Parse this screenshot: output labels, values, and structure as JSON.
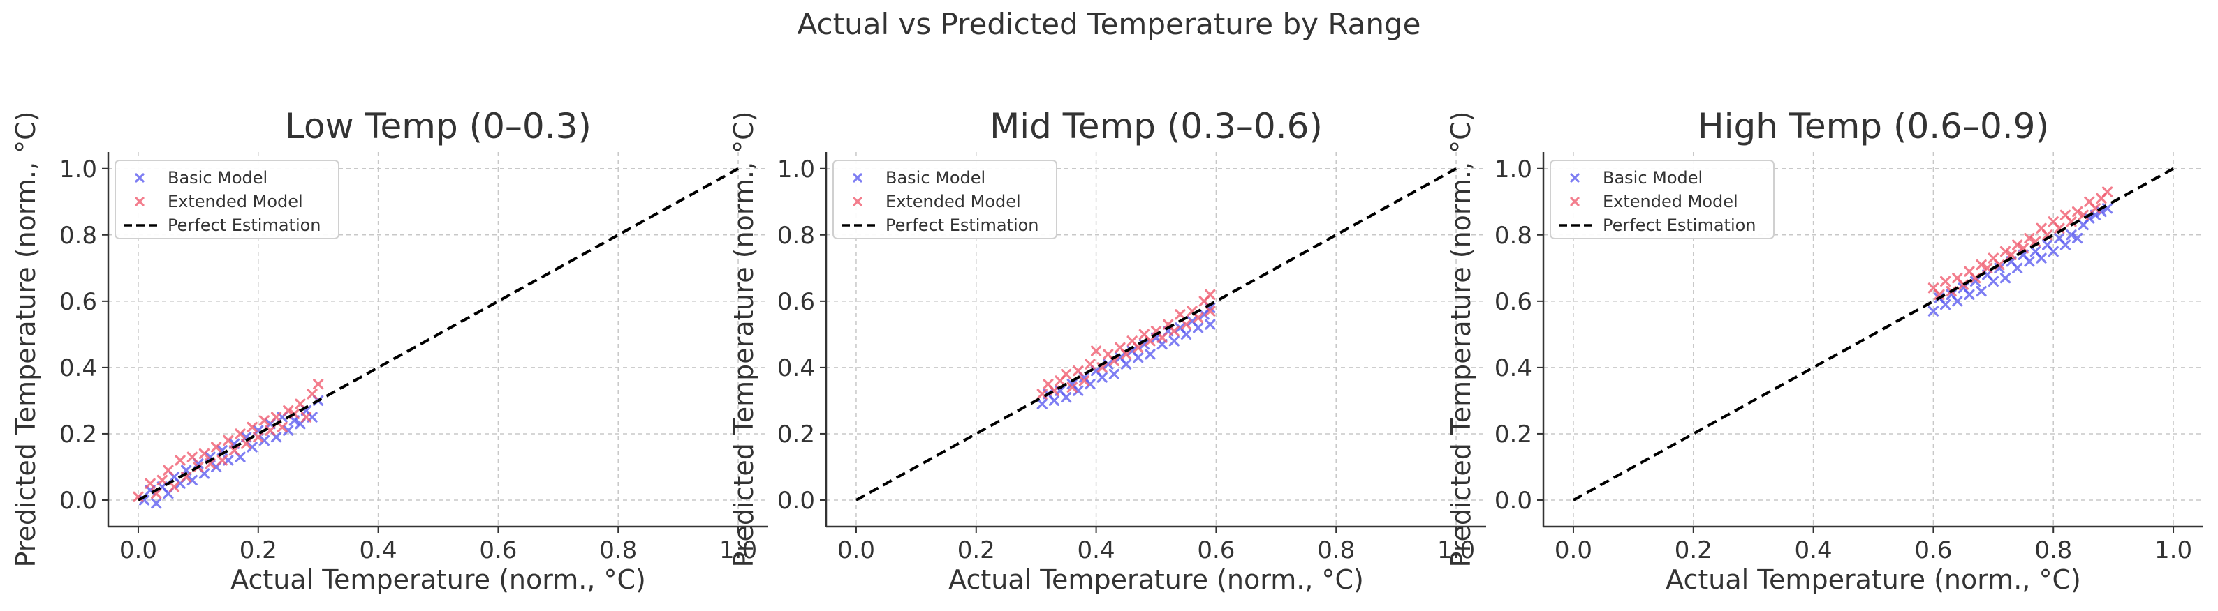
{
  "figure_title": "Actual vs Predicted Temperature by Range",
  "colors": {
    "basic": "#5a5af0",
    "extended": "#f05a6e",
    "perfect": "#000000",
    "grid": "#c8c8c8",
    "axis": "#333333"
  },
  "chart_data": [
    {
      "type": "scatter",
      "title": "Low Temp (0–0.3)",
      "xlabel": "Actual Temperature (norm., °C)",
      "ylabel": "Predicted Temperature (norm., °C)",
      "xlim": [
        -0.05,
        1.05
      ],
      "ylim": [
        -0.08,
        1.05
      ],
      "xticks": [
        "0.0",
        "0.2",
        "0.4",
        "0.6",
        "0.8",
        "1.0"
      ],
      "yticks": [
        "0.0",
        "0.2",
        "0.4",
        "0.6",
        "0.8",
        "1.0"
      ],
      "grid": true,
      "legend": {
        "position": "upper left",
        "entries": [
          "Basic Model",
          "Extended Model",
          "Perfect Estimation"
        ]
      },
      "series": [
        {
          "name": "Basic Model",
          "marker": "x",
          "points": [
            [
              0.01,
              0.0
            ],
            [
              0.02,
              0.03
            ],
            [
              0.03,
              -0.01
            ],
            [
              0.04,
              0.04
            ],
            [
              0.05,
              0.02
            ],
            [
              0.06,
              0.07
            ],
            [
              0.07,
              0.05
            ],
            [
              0.08,
              0.09
            ],
            [
              0.09,
              0.06
            ],
            [
              0.1,
              0.11
            ],
            [
              0.11,
              0.08
            ],
            [
              0.12,
              0.13
            ],
            [
              0.13,
              0.1
            ],
            [
              0.14,
              0.15
            ],
            [
              0.15,
              0.12
            ],
            [
              0.16,
              0.17
            ],
            [
              0.17,
              0.13
            ],
            [
              0.18,
              0.19
            ],
            [
              0.19,
              0.16
            ],
            [
              0.2,
              0.21
            ],
            [
              0.21,
              0.18
            ],
            [
              0.22,
              0.23
            ],
            [
              0.23,
              0.19
            ],
            [
              0.24,
              0.25
            ],
            [
              0.25,
              0.21
            ],
            [
              0.26,
              0.24
            ],
            [
              0.27,
              0.23
            ],
            [
              0.28,
              0.27
            ],
            [
              0.29,
              0.25
            ],
            [
              0.3,
              0.3
            ]
          ]
        },
        {
          "name": "Extended Model",
          "marker": "x",
          "points": [
            [
              0.0,
              0.01
            ],
            [
              0.02,
              0.05
            ],
            [
              0.03,
              0.02
            ],
            [
              0.04,
              0.06
            ],
            [
              0.05,
              0.09
            ],
            [
              0.06,
              0.04
            ],
            [
              0.07,
              0.12
            ],
            [
              0.08,
              0.07
            ],
            [
              0.09,
              0.13
            ],
            [
              0.1,
              0.1
            ],
            [
              0.11,
              0.14
            ],
            [
              0.12,
              0.11
            ],
            [
              0.13,
              0.16
            ],
            [
              0.14,
              0.12
            ],
            [
              0.15,
              0.18
            ],
            [
              0.16,
              0.15
            ],
            [
              0.17,
              0.2
            ],
            [
              0.18,
              0.17
            ],
            [
              0.19,
              0.22
            ],
            [
              0.2,
              0.19
            ],
            [
              0.21,
              0.24
            ],
            [
              0.22,
              0.21
            ],
            [
              0.23,
              0.25
            ],
            [
              0.24,
              0.22
            ],
            [
              0.25,
              0.27
            ],
            [
              0.26,
              0.26
            ],
            [
              0.27,
              0.29
            ],
            [
              0.28,
              0.25
            ],
            [
              0.29,
              0.32
            ],
            [
              0.3,
              0.35
            ]
          ]
        },
        {
          "name": "Perfect Estimation",
          "line": "dashed",
          "points": [
            [
              0,
              0
            ],
            [
              1,
              1
            ]
          ]
        }
      ]
    },
    {
      "type": "scatter",
      "title": "Mid Temp (0.3–0.6)",
      "xlabel": "Actual Temperature (norm., °C)",
      "ylabel": "Predicted Temperature (norm., °C)",
      "xlim": [
        -0.05,
        1.05
      ],
      "ylim": [
        -0.08,
        1.05
      ],
      "xticks": [
        "0.0",
        "0.2",
        "0.4",
        "0.6",
        "0.8",
        "1.0"
      ],
      "yticks": [
        "0.0",
        "0.2",
        "0.4",
        "0.6",
        "0.8",
        "1.0"
      ],
      "grid": true,
      "legend": {
        "position": "upper left",
        "entries": [
          "Basic Model",
          "Extended Model",
          "Perfect Estimation"
        ]
      },
      "series": [
        {
          "name": "Basic Model",
          "marker": "x",
          "points": [
            [
              0.31,
              0.29
            ],
            [
              0.32,
              0.32
            ],
            [
              0.33,
              0.3
            ],
            [
              0.34,
              0.33
            ],
            [
              0.35,
              0.31
            ],
            [
              0.36,
              0.35
            ],
            [
              0.37,
              0.33
            ],
            [
              0.38,
              0.37
            ],
            [
              0.39,
              0.35
            ],
            [
              0.4,
              0.39
            ],
            [
              0.41,
              0.37
            ],
            [
              0.42,
              0.41
            ],
            [
              0.43,
              0.38
            ],
            [
              0.44,
              0.43
            ],
            [
              0.45,
              0.41
            ],
            [
              0.46,
              0.45
            ],
            [
              0.47,
              0.43
            ],
            [
              0.48,
              0.47
            ],
            [
              0.49,
              0.44
            ],
            [
              0.5,
              0.49
            ],
            [
              0.51,
              0.47
            ],
            [
              0.52,
              0.51
            ],
            [
              0.53,
              0.48
            ],
            [
              0.54,
              0.52
            ],
            [
              0.55,
              0.5
            ],
            [
              0.56,
              0.54
            ],
            [
              0.57,
              0.52
            ],
            [
              0.58,
              0.56
            ],
            [
              0.59,
              0.53
            ],
            [
              0.59,
              0.58
            ]
          ]
        },
        {
          "name": "Extended Model",
          "marker": "x",
          "points": [
            [
              0.31,
              0.32
            ],
            [
              0.32,
              0.35
            ],
            [
              0.33,
              0.33
            ],
            [
              0.34,
              0.36
            ],
            [
              0.35,
              0.38
            ],
            [
              0.36,
              0.34
            ],
            [
              0.37,
              0.39
            ],
            [
              0.38,
              0.36
            ],
            [
              0.39,
              0.41
            ],
            [
              0.4,
              0.45
            ],
            [
              0.41,
              0.4
            ],
            [
              0.42,
              0.44
            ],
            [
              0.43,
              0.42
            ],
            [
              0.44,
              0.46
            ],
            [
              0.45,
              0.44
            ],
            [
              0.46,
              0.48
            ],
            [
              0.47,
              0.46
            ],
            [
              0.48,
              0.5
            ],
            [
              0.49,
              0.48
            ],
            [
              0.5,
              0.51
            ],
            [
              0.51,
              0.49
            ],
            [
              0.52,
              0.53
            ],
            [
              0.53,
              0.51
            ],
            [
              0.54,
              0.56
            ],
            [
              0.55,
              0.53
            ],
            [
              0.56,
              0.57
            ],
            [
              0.57,
              0.55
            ],
            [
              0.58,
              0.6
            ],
            [
              0.59,
              0.57
            ],
            [
              0.59,
              0.62
            ]
          ]
        },
        {
          "name": "Perfect Estimation",
          "line": "dashed",
          "points": [
            [
              0,
              0
            ],
            [
              1,
              1
            ]
          ]
        }
      ]
    },
    {
      "type": "scatter",
      "title": "High Temp (0.6–0.9)",
      "xlabel": "Actual Temperature (norm., °C)",
      "ylabel": "Predicted Temperature (norm., °C)",
      "xlim": [
        -0.05,
        1.05
      ],
      "ylim": [
        -0.08,
        1.05
      ],
      "xticks": [
        "0.0",
        "0.2",
        "0.4",
        "0.6",
        "0.8",
        "1.0"
      ],
      "yticks": [
        "0.0",
        "0.2",
        "0.4",
        "0.6",
        "0.8",
        "1.0"
      ],
      "grid": true,
      "legend": {
        "position": "upper left",
        "entries": [
          "Basic Model",
          "Extended Model",
          "Perfect Estimation"
        ]
      },
      "series": [
        {
          "name": "Basic Model",
          "marker": "x",
          "points": [
            [
              0.6,
              0.57
            ],
            [
              0.61,
              0.61
            ],
            [
              0.62,
              0.59
            ],
            [
              0.63,
              0.62
            ],
            [
              0.64,
              0.6
            ],
            [
              0.65,
              0.64
            ],
            [
              0.66,
              0.62
            ],
            [
              0.67,
              0.66
            ],
            [
              0.68,
              0.63
            ],
            [
              0.69,
              0.68
            ],
            [
              0.7,
              0.66
            ],
            [
              0.71,
              0.7
            ],
            [
              0.72,
              0.67
            ],
            [
              0.73,
              0.72
            ],
            [
              0.74,
              0.7
            ],
            [
              0.75,
              0.74
            ],
            [
              0.76,
              0.72
            ],
            [
              0.77,
              0.75
            ],
            [
              0.78,
              0.73
            ],
            [
              0.79,
              0.77
            ],
            [
              0.8,
              0.75
            ],
            [
              0.81,
              0.79
            ],
            [
              0.82,
              0.77
            ],
            [
              0.83,
              0.8
            ],
            [
              0.84,
              0.79
            ],
            [
              0.85,
              0.83
            ],
            [
              0.86,
              0.85
            ],
            [
              0.87,
              0.86
            ],
            [
              0.88,
              0.87
            ],
            [
              0.89,
              0.88
            ]
          ]
        },
        {
          "name": "Extended Model",
          "marker": "x",
          "points": [
            [
              0.6,
              0.64
            ],
            [
              0.61,
              0.62
            ],
            [
              0.62,
              0.66
            ],
            [
              0.63,
              0.63
            ],
            [
              0.64,
              0.67
            ],
            [
              0.65,
              0.65
            ],
            [
              0.66,
              0.69
            ],
            [
              0.67,
              0.67
            ],
            [
              0.68,
              0.71
            ],
            [
              0.69,
              0.7
            ],
            [
              0.7,
              0.73
            ],
            [
              0.71,
              0.71
            ],
            [
              0.72,
              0.75
            ],
            [
              0.73,
              0.74
            ],
            [
              0.74,
              0.77
            ],
            [
              0.75,
              0.76
            ],
            [
              0.76,
              0.79
            ],
            [
              0.77,
              0.78
            ],
            [
              0.78,
              0.82
            ],
            [
              0.79,
              0.8
            ],
            [
              0.8,
              0.84
            ],
            [
              0.81,
              0.82
            ],
            [
              0.82,
              0.86
            ],
            [
              0.83,
              0.84
            ],
            [
              0.84,
              0.87
            ],
            [
              0.85,
              0.86
            ],
            [
              0.86,
              0.9
            ],
            [
              0.87,
              0.88
            ],
            [
              0.88,
              0.91
            ],
            [
              0.89,
              0.93
            ]
          ]
        },
        {
          "name": "Perfect Estimation",
          "line": "dashed",
          "points": [
            [
              0,
              0
            ],
            [
              1,
              1
            ]
          ]
        }
      ]
    }
  ]
}
